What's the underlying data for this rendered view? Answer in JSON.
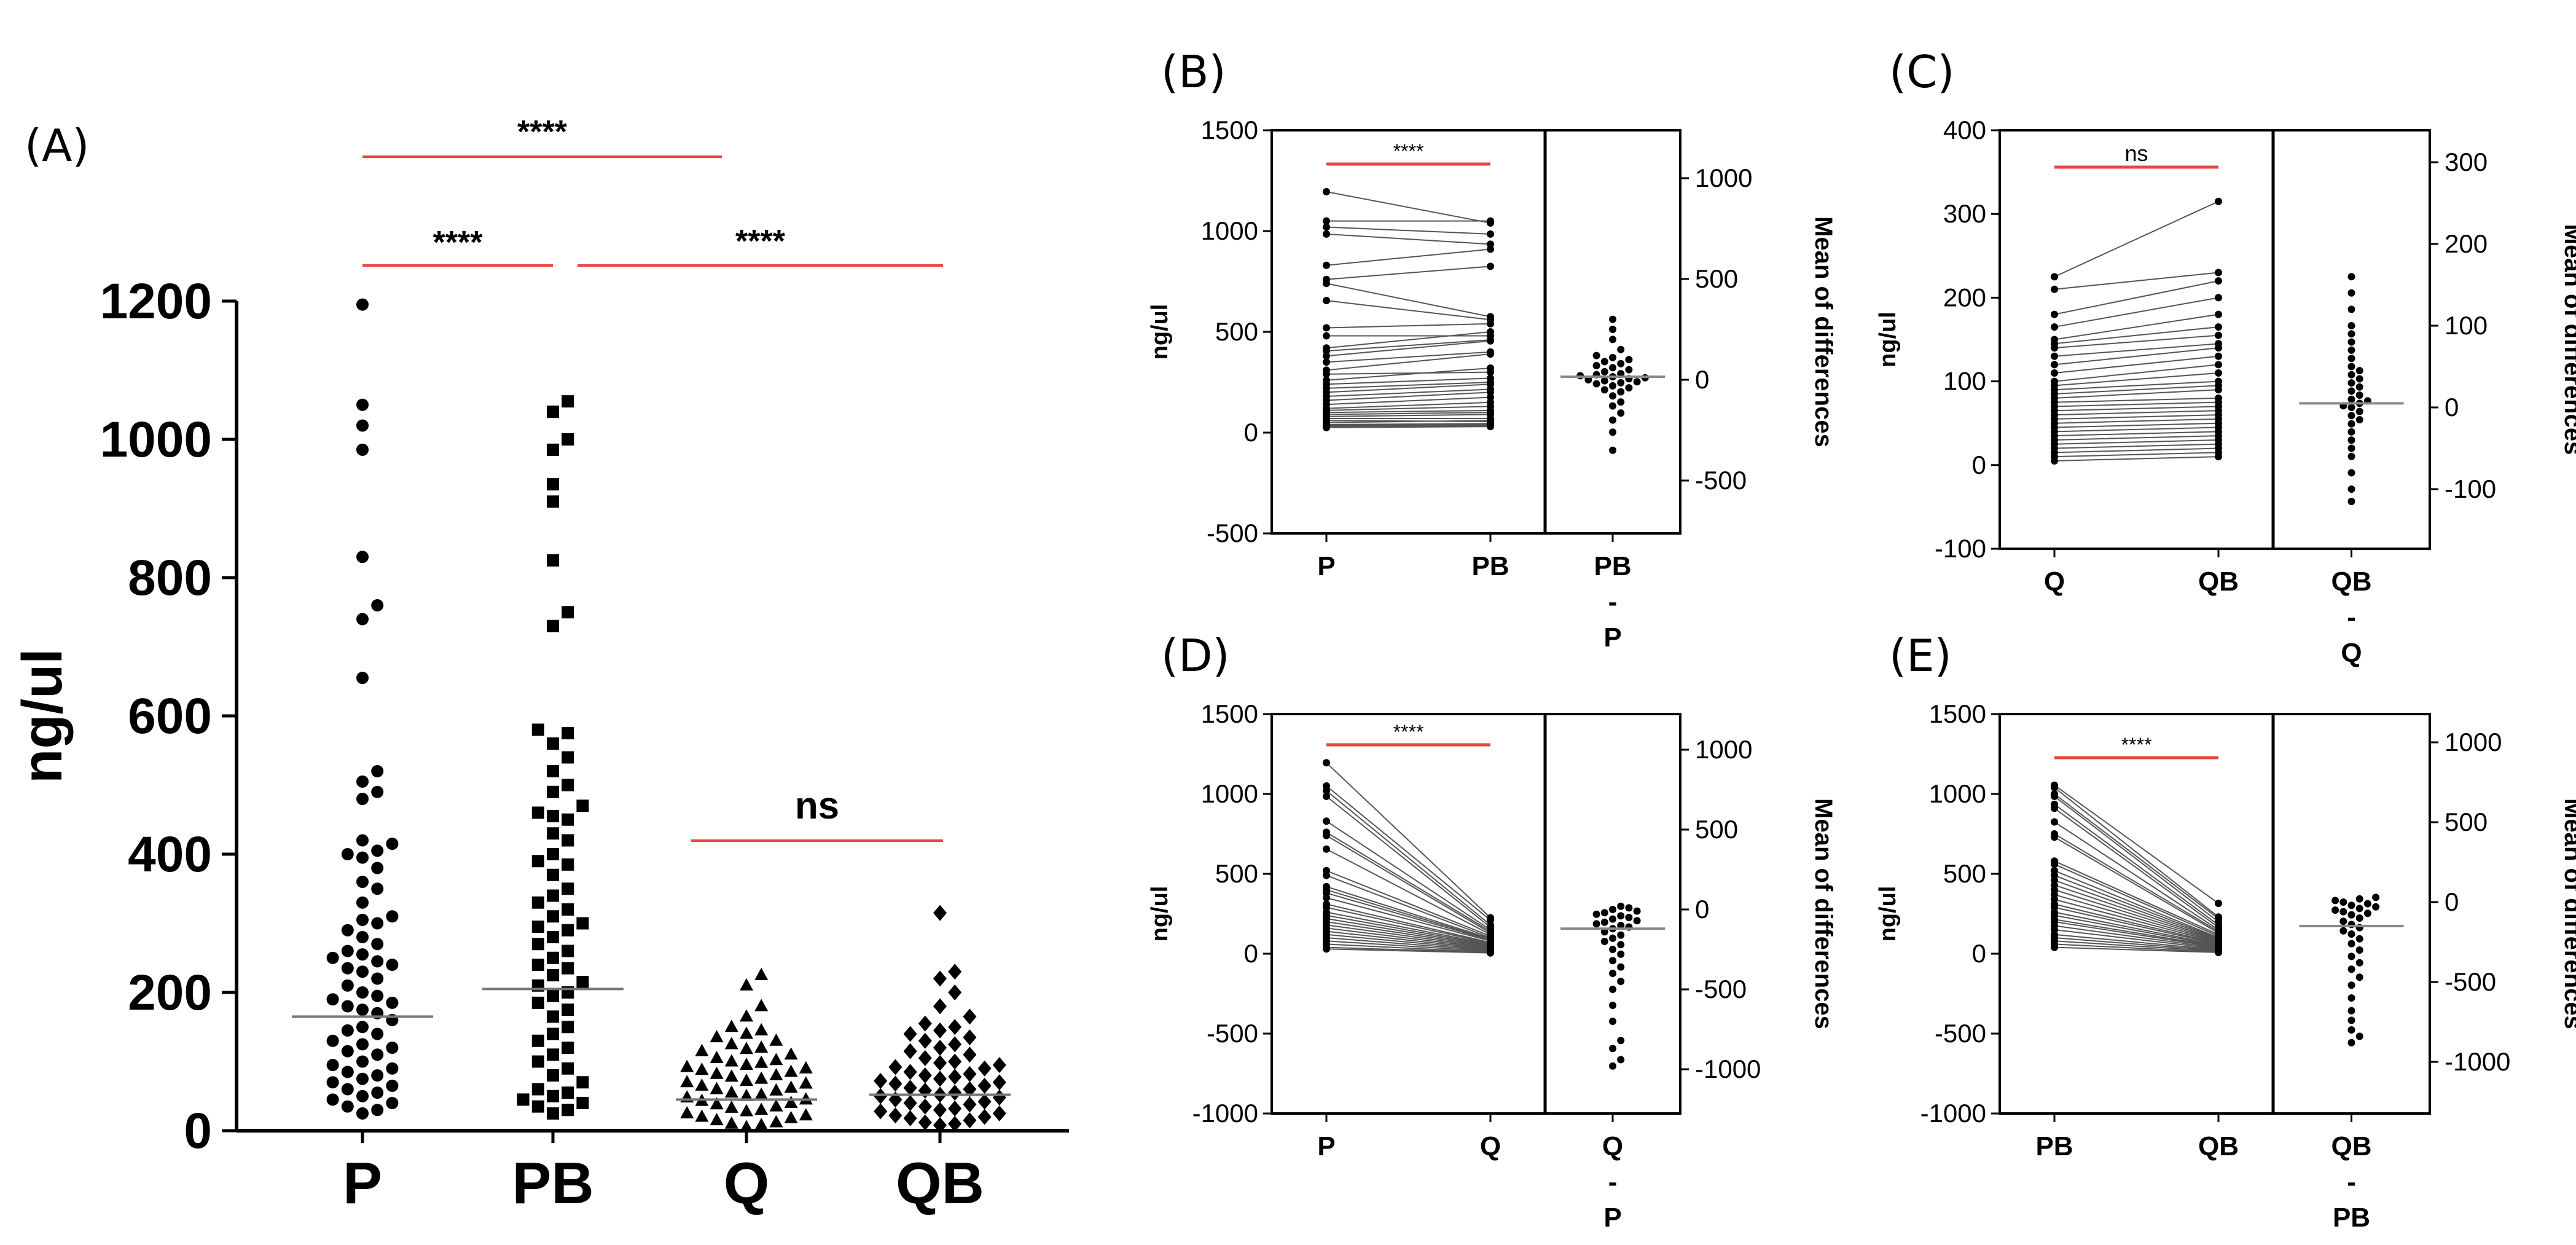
{
  "chart_data": [
    {
      "panel": "(A)",
      "type": "scatter",
      "title": "",
      "xlabel": "",
      "ylabel": "ng/ul",
      "categories": [
        "P",
        "PB",
        "Q",
        "QB"
      ],
      "ylim": [
        0,
        1200
      ],
      "yticks": [
        "0",
        "200",
        "400",
        "600",
        "800",
        "1000",
        "1200"
      ],
      "medians": [
        165,
        205,
        45,
        52
      ],
      "series": [
        {
          "name": "P",
          "marker": "circle",
          "values": [
            1195,
            1050,
            1020,
            985,
            830,
            760,
            740,
            655,
            520,
            505,
            490,
            480,
            420,
            415,
            405,
            400,
            395,
            380,
            360,
            350,
            330,
            310,
            305,
            300,
            290,
            280,
            270,
            260,
            255,
            250,
            245,
            240,
            235,
            230,
            220,
            210,
            200,
            195,
            190,
            185,
            180,
            175,
            170,
            160,
            150,
            145,
            140,
            130,
            125,
            120,
            115,
            110,
            100,
            95,
            90,
            85,
            80,
            75,
            70,
            65,
            60,
            55,
            50,
            45,
            40,
            35,
            30,
            25
          ]
        },
        {
          "name": "PB",
          "marker": "square",
          "values": [
            1055,
            1040,
            1000,
            985,
            935,
            910,
            825,
            750,
            730,
            580,
            575,
            560,
            540,
            520,
            500,
            490,
            470,
            460,
            455,
            450,
            430,
            420,
            400,
            390,
            385,
            370,
            350,
            340,
            330,
            320,
            310,
            300,
            295,
            290,
            280,
            270,
            260,
            250,
            240,
            235,
            225,
            215,
            210,
            200,
            195,
            185,
            175,
            165,
            150,
            140,
            130,
            120,
            110,
            100,
            90,
            80,
            70,
            60,
            55,
            50,
            45,
            40,
            35,
            30,
            25
          ]
        },
        {
          "name": "Q",
          "marker": "triangle",
          "values": [
            225,
            210,
            180,
            165,
            150,
            145,
            140,
            135,
            130,
            125,
            120,
            118,
            115,
            110,
            105,
            102,
            100,
            98,
            95,
            92,
            90,
            88,
            85,
            82,
            80,
            78,
            75,
            72,
            70,
            68,
            65,
            62,
            60,
            58,
            55,
            52,
            50,
            48,
            45,
            43,
            40,
            38,
            35,
            33,
            30,
            28,
            25,
            22,
            20,
            18,
            15,
            12,
            10,
            8,
            5
          ]
        },
        {
          "name": "QB",
          "marker": "diamond",
          "values": [
            315,
            230,
            220,
            200,
            180,
            165,
            155,
            150,
            145,
            140,
            135,
            130,
            125,
            120,
            115,
            110,
            105,
            100,
            98,
            95,
            92,
            90,
            85,
            82,
            80,
            78,
            75,
            72,
            70,
            68,
            65,
            62,
            60,
            58,
            55,
            52,
            50,
            48,
            45,
            42,
            40,
            38,
            35,
            32,
            30,
            28,
            25,
            22,
            20,
            18,
            15,
            12,
            10,
            8
          ]
        }
      ],
      "annotations": [
        {
          "label": "****",
          "from": "P",
          "to": "Q"
        },
        {
          "label": "****",
          "from": "P",
          "to": "PB"
        },
        {
          "label": "****",
          "from": "PB",
          "to": "QB"
        },
        {
          "label": "ns",
          "from": "Q",
          "to": "QB"
        }
      ]
    },
    {
      "panel": "(B)",
      "type": "scatter",
      "ylabel": "ng/ul",
      "y2label": "Mean of differences",
      "categories": [
        "P",
        "PB"
      ],
      "diff_label": [
        "PB",
        "-",
        "P"
      ],
      "ylim": [
        -500,
        1500
      ],
      "yticks": [
        "-500",
        "0",
        "500",
        "1000",
        "1500"
      ],
      "y2ticks": [
        "-500",
        "0",
        "500",
        "1000"
      ],
      "y2ticks_values": [
        -500,
        0,
        500,
        1000
      ],
      "significance": "****",
      "paired": [
        [
          1195,
          1040
        ],
        [
          1050,
          1050
        ],
        [
          1020,
          985
        ],
        [
          985,
          935
        ],
        [
          830,
          910
        ],
        [
          760,
          825
        ],
        [
          740,
          575
        ],
        [
          655,
          560
        ],
        [
          520,
          540
        ],
        [
          480,
          480
        ],
        [
          420,
          500
        ],
        [
          405,
          460
        ],
        [
          380,
          455
        ],
        [
          350,
          400
        ],
        [
          310,
          390
        ],
        [
          290,
          300
        ],
        [
          260,
          320
        ],
        [
          240,
          270
        ],
        [
          220,
          250
        ],
        [
          200,
          240
        ],
        [
          180,
          215
        ],
        [
          160,
          200
        ],
        [
          140,
          175
        ],
        [
          120,
          150
        ],
        [
          110,
          130
        ],
        [
          100,
          110
        ],
        [
          90,
          100
        ],
        [
          80,
          90
        ],
        [
          70,
          70
        ],
        [
          60,
          55
        ],
        [
          50,
          60
        ],
        [
          40,
          45
        ],
        [
          35,
          40
        ],
        [
          30,
          35
        ],
        [
          25,
          30
        ]
      ],
      "differences": [
        300,
        250,
        200,
        150,
        120,
        110,
        100,
        90,
        80,
        70,
        60,
        50,
        40,
        30,
        25,
        20,
        15,
        10,
        5,
        0,
        -5,
        -10,
        -15,
        -20,
        -30,
        -40,
        -50,
        -60,
        -80,
        -110,
        -130,
        -165,
        -200,
        -260,
        -350
      ],
      "mean_difference": 15
    },
    {
      "panel": "(C)",
      "type": "scatter",
      "ylabel": "ng/ul",
      "y2label": "Mean of differences",
      "categories": [
        "Q",
        "QB"
      ],
      "diff_label": [
        "QB",
        "-",
        "Q"
      ],
      "ylim": [
        -100,
        400
      ],
      "yticks": [
        "-100",
        "0",
        "100",
        "200",
        "300",
        "400"
      ],
      "y2ticks": [
        "-100",
        "0",
        "100",
        "200",
        "300"
      ],
      "y2ticks_values": [
        -100,
        0,
        100,
        200,
        300
      ],
      "significance": "ns",
      "paired": [
        [
          225,
          315
        ],
        [
          210,
          230
        ],
        [
          180,
          220
        ],
        [
          165,
          200
        ],
        [
          150,
          180
        ],
        [
          145,
          165
        ],
        [
          140,
          155
        ],
        [
          130,
          145
        ],
        [
          120,
          140
        ],
        [
          110,
          130
        ],
        [
          100,
          120
        ],
        [
          95,
          110
        ],
        [
          90,
          100
        ],
        [
          85,
          95
        ],
        [
          80,
          90
        ],
        [
          75,
          80
        ],
        [
          70,
          75
        ],
        [
          65,
          70
        ],
        [
          60,
          65
        ],
        [
          55,
          60
        ],
        [
          50,
          55
        ],
        [
          45,
          50
        ],
        [
          40,
          45
        ],
        [
          35,
          40
        ],
        [
          30,
          35
        ],
        [
          25,
          30
        ],
        [
          20,
          25
        ],
        [
          15,
          20
        ],
        [
          10,
          15
        ],
        [
          5,
          10
        ]
      ],
      "differences": [
        160,
        140,
        120,
        100,
        90,
        80,
        70,
        60,
        50,
        45,
        40,
        35,
        30,
        25,
        20,
        15,
        10,
        8,
        5,
        2,
        0,
        -5,
        -10,
        -15,
        -20,
        -30,
        -40,
        -50,
        -60,
        -80,
        -100,
        -115
      ],
      "mean_difference": 5
    },
    {
      "panel": "(D)",
      "type": "scatter",
      "ylabel": "ng/ul",
      "y2label": "Mean of differences",
      "categories": [
        "P",
        "Q"
      ],
      "diff_label": [
        "Q",
        "-",
        "P"
      ],
      "ylim": [
        -1000,
        1500
      ],
      "yticks": [
        "-1000",
        "-500",
        "0",
        "500",
        "1000",
        "1500"
      ],
      "y2ticks": [
        "-1000",
        "-500",
        "0",
        "500",
        "1000"
      ],
      "y2ticks_values": [
        -1000,
        -500,
        0,
        500,
        1000
      ],
      "significance": "****",
      "paired": [
        [
          1195,
          225
        ],
        [
          1050,
          210
        ],
        [
          1020,
          180
        ],
        [
          985,
          165
        ],
        [
          830,
          150
        ],
        [
          760,
          140
        ],
        [
          740,
          130
        ],
        [
          655,
          120
        ],
        [
          520,
          110
        ],
        [
          490,
          100
        ],
        [
          420,
          95
        ],
        [
          400,
          90
        ],
        [
          380,
          85
        ],
        [
          350,
          80
        ],
        [
          310,
          70
        ],
        [
          290,
          65
        ],
        [
          260,
          60
        ],
        [
          240,
          55
        ],
        [
          220,
          50
        ],
        [
          200,
          45
        ],
        [
          180,
          40
        ],
        [
          160,
          35
        ],
        [
          140,
          30
        ],
        [
          120,
          25
        ],
        [
          100,
          20
        ],
        [
          80,
          15
        ],
        [
          60,
          10
        ],
        [
          40,
          8
        ],
        [
          30,
          5
        ]
      ],
      "differences": [
        20,
        10,
        0,
        -10,
        -20,
        -30,
        -40,
        -50,
        -60,
        -70,
        -80,
        -90,
        -100,
        -110,
        -120,
        -140,
        -160,
        -180,
        -200,
        -220,
        -250,
        -280,
        -320,
        -360,
        -400,
        -450,
        -500,
        -600,
        -700,
        -820,
        -870,
        -940,
        -980
      ],
      "mean_difference": -120
    },
    {
      "panel": "(E)",
      "type": "scatter",
      "ylabel": "ng/ul",
      "y2label": "Mean of differences",
      "categories": [
        "PB",
        "QB"
      ],
      "diff_label": [
        "QB",
        "-",
        "PB"
      ],
      "ylim": [
        -1000,
        1500
      ],
      "yticks": [
        "-1000",
        "-500",
        "0",
        "500",
        "1000",
        "1500"
      ],
      "y2ticks": [
        "-1000",
        "-500",
        "0",
        "500",
        "1000"
      ],
      "y2ticks_values": [
        -1000,
        -500,
        0,
        500,
        1000
      ],
      "significance": "****",
      "paired": [
        [
          1055,
          315
        ],
        [
          1040,
          230
        ],
        [
          1000,
          220
        ],
        [
          985,
          200
        ],
        [
          935,
          180
        ],
        [
          910,
          165
        ],
        [
          825,
          150
        ],
        [
          750,
          140
        ],
        [
          730,
          130
        ],
        [
          580,
          120
        ],
        [
          560,
          110
        ],
        [
          520,
          100
        ],
        [
          490,
          95
        ],
        [
          460,
          90
        ],
        [
          430,
          85
        ],
        [
          400,
          80
        ],
        [
          370,
          75
        ],
        [
          340,
          70
        ],
        [
          310,
          65
        ],
        [
          290,
          60
        ],
        [
          260,
          55
        ],
        [
          240,
          50
        ],
        [
          215,
          45
        ],
        [
          200,
          40
        ],
        [
          175,
          35
        ],
        [
          150,
          30
        ],
        [
          120,
          25
        ],
        [
          100,
          20
        ],
        [
          80,
          15
        ],
        [
          60,
          10
        ],
        [
          40,
          8
        ]
      ],
      "differences": [
        30,
        20,
        10,
        0,
        -10,
        -20,
        -30,
        -40,
        -50,
        -60,
        -70,
        -80,
        -100,
        -120,
        -140,
        -160,
        -180,
        -200,
        -230,
        -260,
        -300,
        -340,
        -380,
        -420,
        -470,
        -520,
        -600,
        -680,
        -740,
        -800,
        -840,
        -880
      ],
      "mean_difference": -150
    }
  ]
}
